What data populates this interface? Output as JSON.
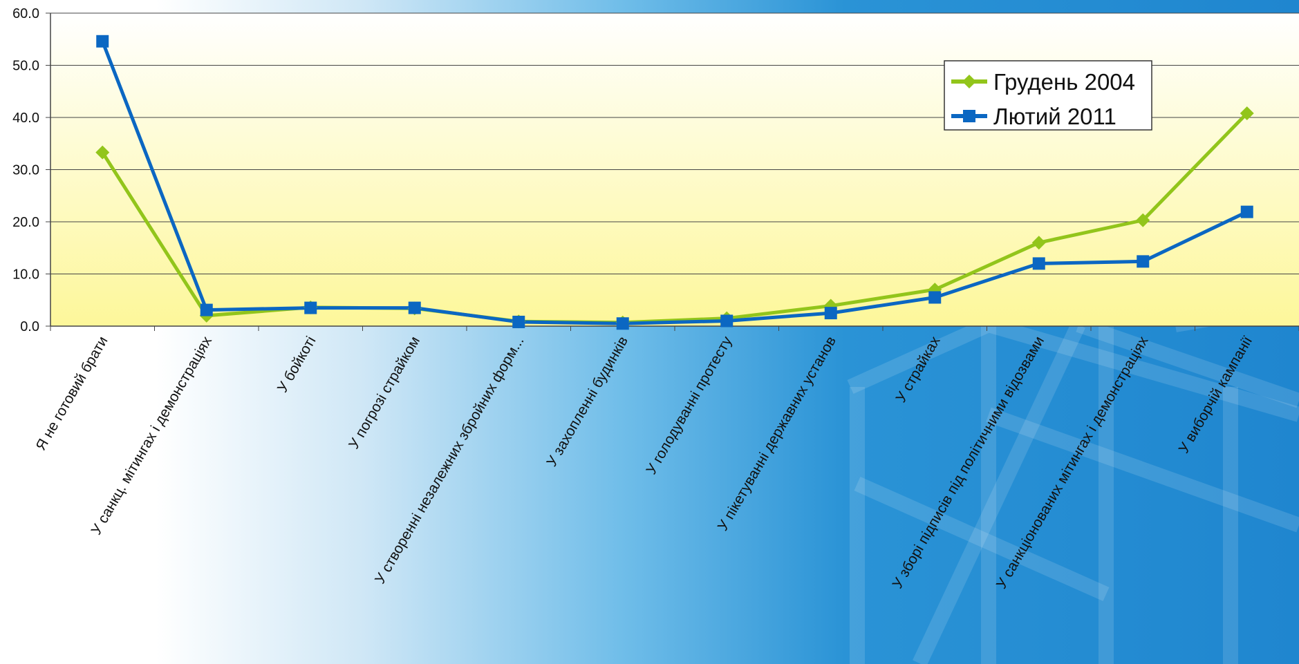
{
  "chart_data": {
    "type": "line",
    "title": "",
    "xlabel": "",
    "ylabel": "",
    "ylim": [
      0,
      60
    ],
    "yticks": [
      "0.0",
      "10.0",
      "20.0",
      "30.0",
      "40.0",
      "50.0",
      "60.0"
    ],
    "grid": true,
    "legend_position": "top-right",
    "categories": [
      "Я не готовий брати",
      "У санкц. мітингах і демонстраціях",
      "У бойкоті",
      "У погрозі страйком",
      "У створенні незалежних збройних форм...",
      "У захопленні будинків",
      "У голодуванні протесту",
      "У пікетуванні державних установ",
      "У страйках",
      "У зборі підписів під політичними відозвами",
      "У санкціонованих мітингах і демонстраціях",
      "У виборчій кампанії"
    ],
    "series": [
      {
        "name": "Грудень 2004",
        "color": "#92c51b",
        "marker": "diamond",
        "values": [
          33.3,
          2.0,
          3.6,
          3.4,
          0.9,
          0.7,
          1.5,
          3.9,
          7.0,
          16.0,
          20.3,
          40.8
        ]
      },
      {
        "name": "Лютий 2011",
        "color": "#0b67c2",
        "marker": "square",
        "values": [
          54.6,
          3.1,
          3.5,
          3.5,
          0.8,
          0.5,
          1.0,
          2.5,
          5.5,
          12.0,
          12.4,
          21.9
        ]
      }
    ]
  }
}
